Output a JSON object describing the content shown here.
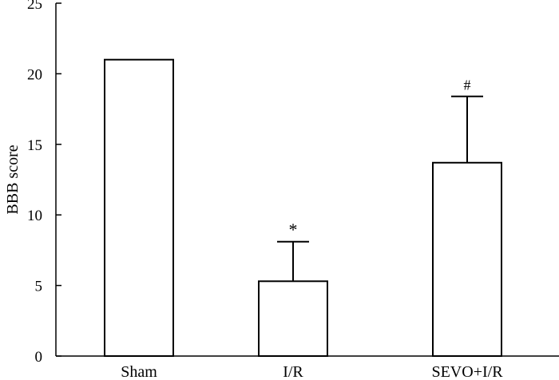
{
  "chart_data": {
    "type": "bar",
    "categories": [
      "Sham",
      "I/R",
      "SEVO+I/R"
    ],
    "values": [
      21,
      5.3,
      13.7
    ],
    "errors": [
      0,
      2.8,
      4.7
    ],
    "annotations": [
      "",
      "*",
      "#"
    ],
    "title": "",
    "xlabel": "",
    "ylabel": "BBB score",
    "ylim": [
      0,
      25
    ],
    "yticks": [
      "0",
      "5",
      "10",
      "15",
      "20",
      "25"
    ],
    "grid": false,
    "bar_fill": "#ffffff",
    "bar_stroke": "#000000"
  }
}
